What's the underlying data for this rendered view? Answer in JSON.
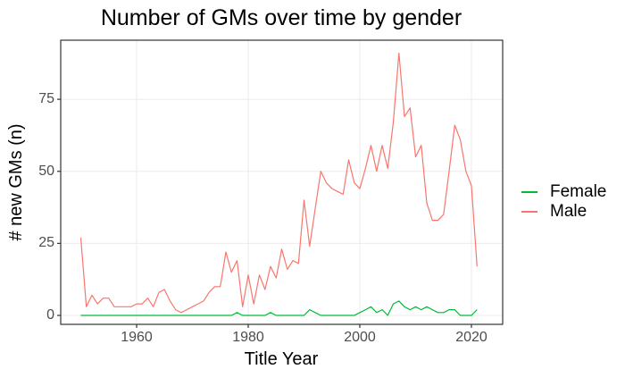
{
  "title": "Number of GMs over time by gender",
  "axes": {
    "x": {
      "title": "Title Year",
      "tick_labels": [
        "1960",
        "1980",
        "2000",
        "2020"
      ],
      "tick_values": [
        1960,
        1980,
        2000,
        2020
      ]
    },
    "y": {
      "title": "# new GMs (n)",
      "tick_labels": [
        "0",
        "25",
        "50",
        "75"
      ],
      "tick_values": [
        0,
        25,
        50,
        75
      ]
    }
  },
  "legend": {
    "items": [
      {
        "label": "Female",
        "color": "#00BA38"
      },
      {
        "label": "Male",
        "color": "#F8766D"
      }
    ]
  },
  "colors": {
    "background": "#FFFFFF",
    "panel_background": "#FFFFFF",
    "panel_border": "#333333",
    "grid": "#EBEBEB",
    "tick_mark": "#333333",
    "axis_text": "#4D4D4D",
    "female_line": "#00BA38",
    "male_line": "#F8766D"
  },
  "chart_data": {
    "type": "line",
    "title": "Number of GMs over time by gender",
    "xlabel": "Title Year",
    "ylabel": "# new GMs (n)",
    "xlim": [
      1946.4,
      2025.6
    ],
    "ylim": [
      -3.1,
      95.5
    ],
    "grid": "major-only",
    "legend_position": "right",
    "x": [
      1950,
      1951,
      1952,
      1953,
      1954,
      1955,
      1956,
      1957,
      1958,
      1959,
      1960,
      1961,
      1962,
      1963,
      1964,
      1965,
      1966,
      1967,
      1968,
      1969,
      1970,
      1971,
      1972,
      1973,
      1974,
      1975,
      1976,
      1977,
      1978,
      1979,
      1980,
      1981,
      1982,
      1983,
      1984,
      1985,
      1986,
      1987,
      1988,
      1989,
      1990,
      1991,
      1992,
      1993,
      1994,
      1995,
      1996,
      1997,
      1998,
      1999,
      2000,
      2001,
      2002,
      2003,
      2004,
      2005,
      2006,
      2007,
      2008,
      2009,
      2010,
      2011,
      2012,
      2013,
      2014,
      2015,
      2016,
      2017,
      2018,
      2019,
      2020,
      2021
    ],
    "series": [
      {
        "name": "Female",
        "color": "#00BA38",
        "values": [
          0,
          0,
          0,
          0,
          0,
          0,
          0,
          0,
          0,
          0,
          0,
          0,
          0,
          0,
          0,
          0,
          0,
          0,
          0,
          0,
          0,
          0,
          0,
          0,
          0,
          0,
          0,
          0,
          1,
          0,
          0,
          0,
          0,
          0,
          1,
          0,
          0,
          0,
          0,
          0,
          0,
          2,
          1,
          0,
          0,
          0,
          0,
          0,
          0,
          0,
          1,
          2,
          3,
          1,
          2,
          0,
          4,
          5,
          3,
          2,
          3,
          2,
          3,
          2,
          1,
          1,
          2,
          2,
          0,
          0,
          0,
          2
        ]
      },
      {
        "name": "Male",
        "color": "#F8766D",
        "values": [
          27,
          3,
          7,
          4,
          6,
          6,
          3,
          3,
          3,
          3,
          4,
          4,
          6,
          3,
          8,
          9,
          5,
          2,
          1,
          2,
          3,
          4,
          5,
          8,
          10,
          10,
          22,
          15,
          19,
          3,
          14,
          4,
          14,
          9,
          17,
          13,
          23,
          16,
          19,
          18,
          40,
          24,
          37,
          50,
          46,
          44,
          43,
          42,
          54,
          46,
          44,
          51,
          59,
          50,
          59,
          51,
          67,
          91,
          69,
          72,
          55,
          59,
          39,
          33,
          33,
          35,
          50,
          66,
          61,
          50,
          45,
          17
        ]
      }
    ]
  }
}
